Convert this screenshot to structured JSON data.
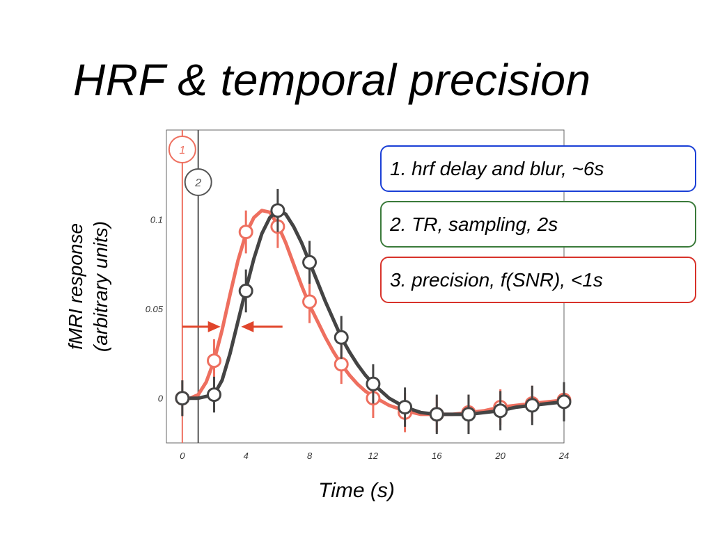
{
  "slide": {
    "title": "HRF & temporal precision"
  },
  "callouts": [
    {
      "text": "1. hrf delay and blur, ~6s",
      "color": "#1a3fd6"
    },
    {
      "text": "2. TR, sampling, 2s",
      "color": "#3a7a3a"
    },
    {
      "text": "3. precision, f(SNR), <1s",
      "color": "#d8322a"
    }
  ],
  "chart_data": {
    "type": "line",
    "xlabel": "Time (s)",
    "ylabel_lines": [
      "fMRI response",
      "(arbitrary units)"
    ],
    "xlim": [
      -1,
      24
    ],
    "ylim": [
      -0.025,
      0.15
    ],
    "xticks": [
      0,
      4,
      8,
      12,
      16,
      20,
      24
    ],
    "xtick_labels": [
      "0",
      "4",
      "8",
      "12",
      "16",
      "20",
      "24"
    ],
    "yticks": [
      0,
      0.05,
      0.1
    ],
    "ytick_labels": [
      "0",
      "0.05",
      "0.1"
    ],
    "grid": false,
    "series": [
      {
        "color": "#ee6f5f",
        "points": [
          {
            "x": 0,
            "y": 0.0,
            "err": 0.01
          },
          {
            "x": 2,
            "y": 0.021,
            "err": 0.012
          },
          {
            "x": 4,
            "y": 0.093,
            "err": 0.012
          },
          {
            "x": 6,
            "y": 0.096,
            "err": 0.012
          },
          {
            "x": 8,
            "y": 0.054,
            "err": 0.012
          },
          {
            "x": 10,
            "y": 0.019,
            "err": 0.011
          },
          {
            "x": 12,
            "y": 0.0,
            "err": 0.011
          },
          {
            "x": 14,
            "y": -0.008,
            "err": 0.011
          },
          {
            "x": 16,
            "y": -0.009,
            "err": 0.01
          },
          {
            "x": 18,
            "y": -0.008,
            "err": 0.01
          },
          {
            "x": 20,
            "y": -0.005,
            "err": 0.01
          },
          {
            "x": 22,
            "y": -0.003,
            "err": 0.01
          },
          {
            "x": 24,
            "y": -0.001,
            "err": 0.01
          }
        ],
        "curve": [
          [
            0,
            0
          ],
          [
            0.5,
            0
          ],
          [
            1,
            0.002
          ],
          [
            1.5,
            0.009
          ],
          [
            2,
            0.021
          ],
          [
            2.5,
            0.038
          ],
          [
            3,
            0.058
          ],
          [
            3.5,
            0.077
          ],
          [
            4,
            0.092
          ],
          [
            4.5,
            0.101
          ],
          [
            5,
            0.105
          ],
          [
            5.5,
            0.104
          ],
          [
            6,
            0.097
          ],
          [
            6.5,
            0.087
          ],
          [
            7,
            0.075
          ],
          [
            7.5,
            0.063
          ],
          [
            8,
            0.052
          ],
          [
            8.5,
            0.043
          ],
          [
            9,
            0.034
          ],
          [
            9.5,
            0.026
          ],
          [
            10,
            0.019
          ],
          [
            10.5,
            0.013
          ],
          [
            11,
            0.008
          ],
          [
            11.5,
            0.004
          ],
          [
            12,
            0.001
          ],
          [
            13,
            -0.004
          ],
          [
            14,
            -0.007
          ],
          [
            15,
            -0.009
          ],
          [
            16,
            -0.009
          ],
          [
            17,
            -0.009
          ],
          [
            18,
            -0.008
          ],
          [
            19,
            -0.007
          ],
          [
            20,
            -0.005
          ],
          [
            21,
            -0.004
          ],
          [
            22,
            -0.003
          ],
          [
            23,
            -0.002
          ],
          [
            24,
            -0.001
          ]
        ]
      },
      {
        "color": "#444444",
        "points": [
          {
            "x": 0,
            "y": 0.0,
            "err": 0.01
          },
          {
            "x": 2,
            "y": 0.002,
            "err": 0.01
          },
          {
            "x": 4,
            "y": 0.06,
            "err": 0.012
          },
          {
            "x": 6,
            "y": 0.105,
            "err": 0.012
          },
          {
            "x": 8,
            "y": 0.076,
            "err": 0.012
          },
          {
            "x": 10,
            "y": 0.034,
            "err": 0.012
          },
          {
            "x": 12,
            "y": 0.008,
            "err": 0.011
          },
          {
            "x": 14,
            "y": -0.005,
            "err": 0.011
          },
          {
            "x": 16,
            "y": -0.009,
            "err": 0.011
          },
          {
            "x": 18,
            "y": -0.009,
            "err": 0.011
          },
          {
            "x": 20,
            "y": -0.007,
            "err": 0.011
          },
          {
            "x": 22,
            "y": -0.004,
            "err": 0.011
          },
          {
            "x": 24,
            "y": -0.002,
            "err": 0.011
          }
        ],
        "curve": [
          [
            0,
            0
          ],
          [
            1,
            0
          ],
          [
            2,
            0.002
          ],
          [
            2.5,
            0.01
          ],
          [
            3,
            0.025
          ],
          [
            3.5,
            0.043
          ],
          [
            4,
            0.061
          ],
          [
            4.5,
            0.078
          ],
          [
            5,
            0.092
          ],
          [
            5.5,
            0.101
          ],
          [
            6,
            0.105
          ],
          [
            6.5,
            0.103
          ],
          [
            7,
            0.096
          ],
          [
            7.5,
            0.087
          ],
          [
            8,
            0.076
          ],
          [
            8.5,
            0.065
          ],
          [
            9,
            0.054
          ],
          [
            9.5,
            0.044
          ],
          [
            10,
            0.034
          ],
          [
            10.5,
            0.026
          ],
          [
            11,
            0.019
          ],
          [
            11.5,
            0.013
          ],
          [
            12,
            0.008
          ],
          [
            13,
            0.0
          ],
          [
            14,
            -0.005
          ],
          [
            15,
            -0.008
          ],
          [
            16,
            -0.009
          ],
          [
            17,
            -0.009
          ],
          [
            18,
            -0.009
          ],
          [
            19,
            -0.008
          ],
          [
            20,
            -0.007
          ],
          [
            21,
            -0.005
          ],
          [
            22,
            -0.004
          ],
          [
            23,
            -0.003
          ],
          [
            24,
            -0.002
          ]
        ]
      }
    ],
    "markers": [
      {
        "label": "1",
        "x": 0,
        "color": "#ee6f5f"
      },
      {
        "label": "2",
        "x": 1,
        "color": "#555555"
      }
    ],
    "arrows": [
      {
        "from_x": 0,
        "to_x": 2.4,
        "y": 0.04,
        "color": "#e0452b"
      },
      {
        "from_x": 6.3,
        "to_x": 3.7,
        "y": 0.04,
        "color": "#e0452b"
      }
    ]
  }
}
